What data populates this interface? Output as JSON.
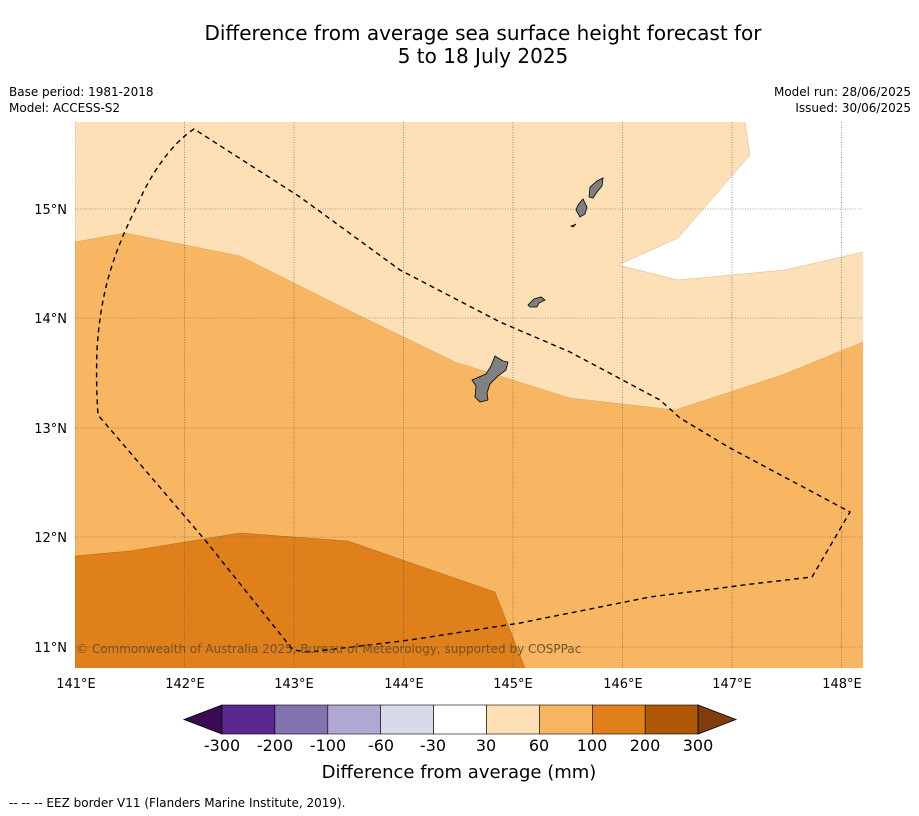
{
  "title_line1": "Difference from average sea surface height forecast for",
  "title_line2": "5 to 18 July 2025",
  "base_period": "Base period: 1981-2018",
  "model": "Model: ACCESS-S2",
  "model_run": "Model run: 28/06/2025",
  "issued": "Issued: 30/06/2025",
  "copyright": "© Commonwealth of Australia 2025, Bureau of Meteorology, supported by COSPPac",
  "lat_labels": [
    "15°N",
    "14°N",
    "13°N",
    "12°N",
    "11°N"
  ],
  "lon_labels": [
    "141°E",
    "142°E",
    "143°E",
    "144°E",
    "145°E",
    "146°E",
    "147°E",
    "148°E"
  ],
  "colorbar": {
    "title": "Difference from average (mm)",
    "ticks": [
      "-300",
      "-200",
      "-100",
      "-60",
      "-30",
      "30",
      "60",
      "100",
      "200",
      "300"
    ],
    "colors": [
      "#3b0a55",
      "#5a2790",
      "#8371b0",
      "#b0a8d2",
      "#d9d9ec",
      "#ffffff",
      "#fde0b6",
      "#f9b662",
      "#e0801a",
      "#b05706",
      "#7e3d0a"
    ]
  },
  "footer": "--  --  -- EEZ border V11 (Flanders Marine Institute, 2019)."
}
